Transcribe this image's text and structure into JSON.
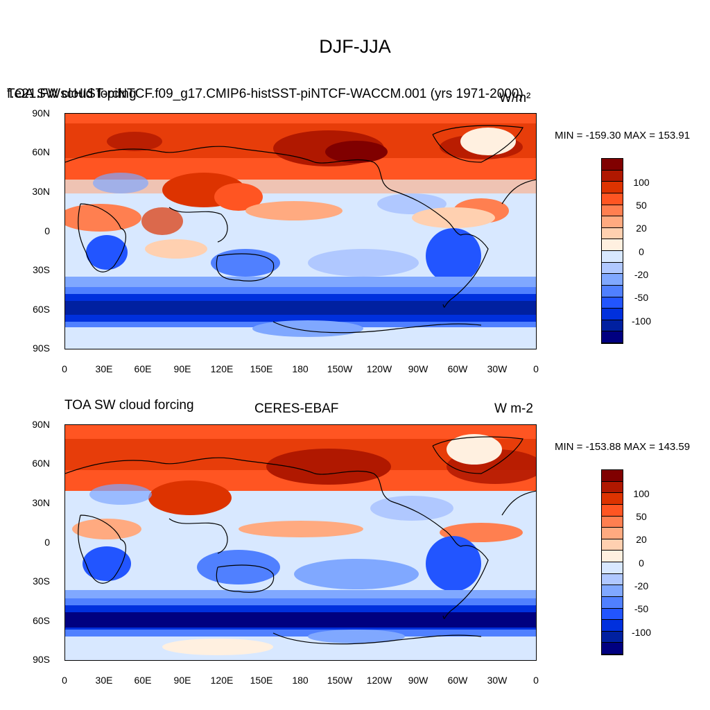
{
  "main_title": "DJF-JJA",
  "panel1": {
    "title_left": "TOA SW cloud forcing",
    "title_center": "f.e21.FWscHIST-piNTCF.f09_g17.CMIP6-histSST-piNTCF-WACCM.001 (yrs 1971-2000)",
    "units": "W/m²",
    "minmax": "MIN = -159.30  MAX = 153.91"
  },
  "panel2": {
    "title_left": "TOA SW cloud forcing",
    "title_center": "CERES-EBAF",
    "units": "W m-2",
    "minmax": "MIN = -153.88  MAX = 143.59"
  },
  "lat_labels": [
    "90N",
    "60N",
    "30N",
    "0",
    "30S",
    "60S",
    "90S"
  ],
  "lon_labels": [
    "0",
    "30E",
    "60E",
    "90E",
    "120E",
    "150E",
    "180",
    "150W",
    "120W",
    "90W",
    "60W",
    "30W",
    "0"
  ],
  "colorbar": {
    "colors": [
      "#800000",
      "#b01800",
      "#dd3300",
      "#ff5522",
      "#ff7f50",
      "#ffaa80",
      "#ffd0b0",
      "#fff0e0",
      "#d8e8ff",
      "#b0c8ff",
      "#80a8ff",
      "#5080ff",
      "#2255ff",
      "#0030dd",
      "#0020a0",
      "#000080"
    ],
    "labels": [
      "100",
      "50",
      "20",
      "0",
      "-20",
      "-50",
      "-100"
    ]
  },
  "legend_colors": {
    "strong_positive": "#b01800",
    "positive": "#ff5522",
    "near_zero": "#fff0e0",
    "negative": "#5080ff",
    "strong_negative": "#0020a0"
  }
}
